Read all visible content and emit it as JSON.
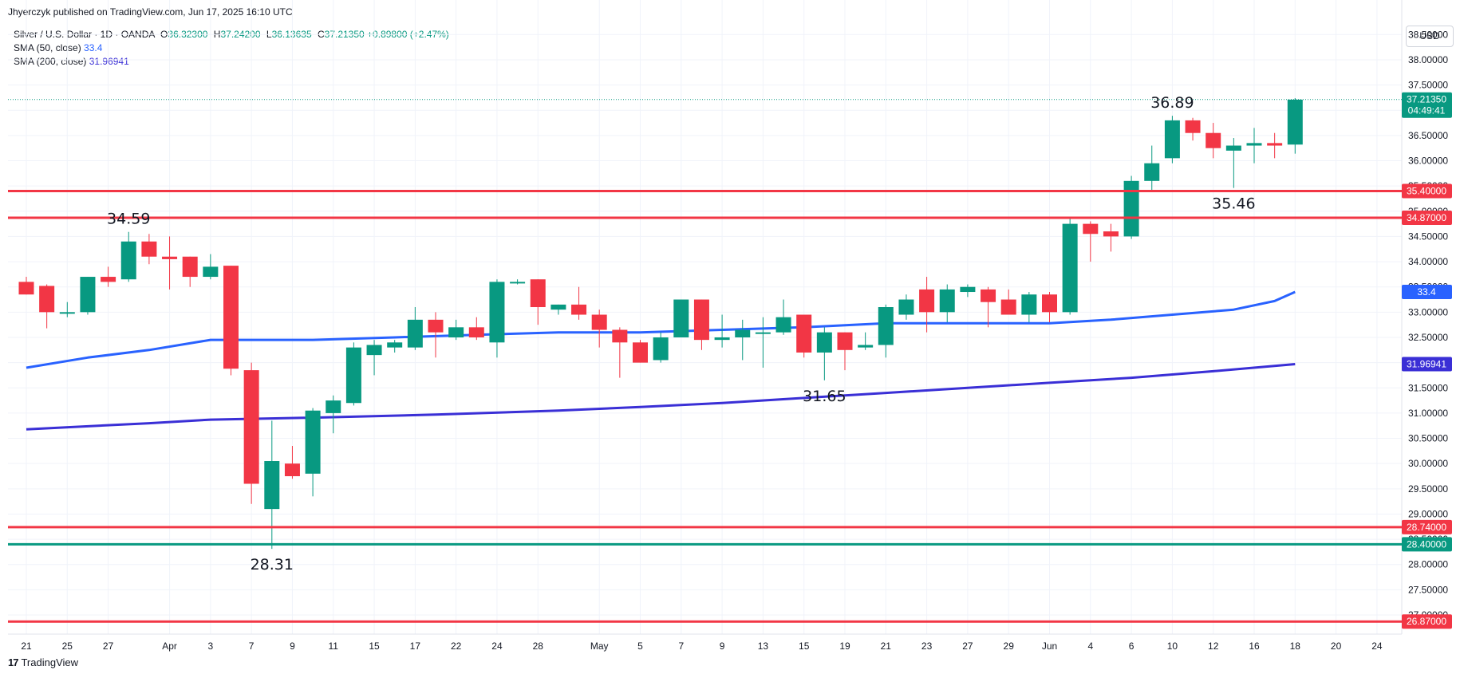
{
  "header": {
    "published": "Jhyerczyk published on TradingView.com, Jun 17, 2025 16:10 UTC",
    "symbol": "Silver / U.S. Dollar · 1D · OANDA",
    "ohlc": [
      {
        "k": "O",
        "v": "36.32300"
      },
      {
        "k": "H",
        "v": "37.24200"
      },
      {
        "k": "L",
        "v": "36.13635"
      },
      {
        "k": "C",
        "v": "37.21350"
      }
    ],
    "change": "+0.89800 (+2.47%)",
    "sma50_label": "SMA (50, close)",
    "sma50_value": "33.4",
    "sma200_label": "SMA (200, close)",
    "sma200_value": "31.96941"
  },
  "currency_button": "USD",
  "footer": {
    "logo_text": "TradingView",
    "logo_mark": "17"
  },
  "colors": {
    "up": "#089981",
    "down": "#f23645",
    "sma50": "#2962ff",
    "sma200": "#3a2fd6",
    "grid": "#f0f3fa"
  },
  "chart_data": {
    "type": "candlestick",
    "title": "Silver / U.S. Dollar · 1D · OANDA",
    "ylim": [
      26.7,
      38.9
    ],
    "y_ticks": [
      "27.00000",
      "27.50000",
      "28.00000",
      "28.50000",
      "29.00000",
      "29.50000",
      "30.00000",
      "30.50000",
      "31.00000",
      "31.50000",
      "32.00000",
      "32.50000",
      "33.00000",
      "33.50000",
      "34.00000",
      "34.50000",
      "35.00000",
      "35.50000",
      "36.00000",
      "36.50000",
      "37.00000",
      "37.50000",
      "38.00000",
      "38.50000"
    ],
    "x_ticks": [
      {
        "i": 0,
        "label": "21"
      },
      {
        "i": 2,
        "label": "25"
      },
      {
        "i": 4,
        "label": "27"
      },
      {
        "i": 7,
        "label": "Apr"
      },
      {
        "i": 9,
        "label": "3"
      },
      {
        "i": 11,
        "label": "7"
      },
      {
        "i": 13,
        "label": "9"
      },
      {
        "i": 15,
        "label": "11"
      },
      {
        "i": 17,
        "label": "15"
      },
      {
        "i": 19,
        "label": "17"
      },
      {
        "i": 21,
        "label": "22"
      },
      {
        "i": 23,
        "label": "24"
      },
      {
        "i": 25,
        "label": "28"
      },
      {
        "i": 28,
        "label": "May"
      },
      {
        "i": 30,
        "label": "5"
      },
      {
        "i": 32,
        "label": "7"
      },
      {
        "i": 34,
        "label": "9"
      },
      {
        "i": 36,
        "label": "13"
      },
      {
        "i": 38,
        "label": "15"
      },
      {
        "i": 40,
        "label": "19"
      },
      {
        "i": 42,
        "label": "21"
      },
      {
        "i": 44,
        "label": "23"
      },
      {
        "i": 46,
        "label": "27"
      },
      {
        "i": 48,
        "label": "29"
      },
      {
        "i": 50,
        "label": "Jun"
      },
      {
        "i": 52,
        "label": "4"
      },
      {
        "i": 54,
        "label": "6"
      },
      {
        "i": 56,
        "label": "10"
      },
      {
        "i": 58,
        "label": "12"
      },
      {
        "i": 60,
        "label": "16"
      },
      {
        "i": 62,
        "label": "18"
      },
      {
        "i": 64,
        "label": "20"
      },
      {
        "i": 66,
        "label": "24"
      }
    ],
    "candles": [
      {
        "o": 33.6,
        "h": 33.7,
        "l": 33.35,
        "c": 33.35
      },
      {
        "o": 33.52,
        "h": 33.55,
        "l": 32.68,
        "c": 33.0
      },
      {
        "o": 33.0,
        "h": 33.2,
        "l": 32.9,
        "c": 33.0
      },
      {
        "o": 33.0,
        "h": 33.7,
        "l": 32.95,
        "c": 33.7
      },
      {
        "o": 33.7,
        "h": 33.9,
        "l": 33.5,
        "c": 33.6
      },
      {
        "o": 33.65,
        "h": 34.59,
        "l": 33.6,
        "c": 34.4
      },
      {
        "o": 34.4,
        "h": 34.55,
        "l": 33.95,
        "c": 34.1
      },
      {
        "o": 34.1,
        "h": 34.5,
        "l": 33.45,
        "c": 34.05
      },
      {
        "o": 34.1,
        "h": 34.1,
        "l": 33.5,
        "c": 33.7
      },
      {
        "o": 33.7,
        "h": 34.15,
        "l": 33.65,
        "c": 33.9
      },
      {
        "o": 33.92,
        "h": 33.92,
        "l": 31.75,
        "c": 31.88
      },
      {
        "o": 31.85,
        "h": 32.0,
        "l": 29.2,
        "c": 29.6
      },
      {
        "o": 29.1,
        "h": 30.85,
        "l": 28.31,
        "c": 30.05
      },
      {
        "o": 30.0,
        "h": 30.35,
        "l": 29.7,
        "c": 29.75
      },
      {
        "o": 29.8,
        "h": 31.1,
        "l": 29.35,
        "c": 31.05
      },
      {
        "o": 31.0,
        "h": 31.35,
        "l": 30.6,
        "c": 31.25
      },
      {
        "o": 31.2,
        "h": 32.4,
        "l": 31.15,
        "c": 32.3
      },
      {
        "o": 32.15,
        "h": 32.45,
        "l": 31.75,
        "c": 32.35
      },
      {
        "o": 32.3,
        "h": 32.45,
        "l": 32.2,
        "c": 32.4
      },
      {
        "o": 32.3,
        "h": 33.1,
        "l": 32.25,
        "c": 32.85
      },
      {
        "o": 32.85,
        "h": 33.0,
        "l": 32.1,
        "c": 32.6
      },
      {
        "o": 32.5,
        "h": 32.85,
        "l": 32.45,
        "c": 32.7
      },
      {
        "o": 32.7,
        "h": 32.9,
        "l": 32.45,
        "c": 32.5
      },
      {
        "o": 32.4,
        "h": 33.65,
        "l": 32.1,
        "c": 33.6
      },
      {
        "o": 33.6,
        "h": 33.65,
        "l": 33.55,
        "c": 33.6
      },
      {
        "o": 33.65,
        "h": 33.65,
        "l": 32.75,
        "c": 33.1
      },
      {
        "o": 33.05,
        "h": 33.15,
        "l": 32.95,
        "c": 33.15
      },
      {
        "o": 33.15,
        "h": 33.5,
        "l": 32.85,
        "c": 32.95
      },
      {
        "o": 32.95,
        "h": 33.05,
        "l": 32.3,
        "c": 32.65
      },
      {
        "o": 32.65,
        "h": 32.7,
        "l": 31.7,
        "c": 32.4
      },
      {
        "o": 32.4,
        "h": 32.45,
        "l": 32.0,
        "c": 32.0
      },
      {
        "o": 32.05,
        "h": 32.6,
        "l": 32.0,
        "c": 32.5
      },
      {
        "o": 32.5,
        "h": 33.25,
        "l": 32.5,
        "c": 33.25
      },
      {
        "o": 33.25,
        "h": 33.25,
        "l": 32.25,
        "c": 32.45
      },
      {
        "o": 32.45,
        "h": 32.95,
        "l": 32.3,
        "c": 32.5
      },
      {
        "o": 32.5,
        "h": 32.85,
        "l": 32.05,
        "c": 32.65
      },
      {
        "o": 32.6,
        "h": 32.9,
        "l": 31.9,
        "c": 32.6
      },
      {
        "o": 32.6,
        "h": 33.25,
        "l": 32.55,
        "c": 32.9
      },
      {
        "o": 32.95,
        "h": 32.95,
        "l": 32.1,
        "c": 32.2
      },
      {
        "o": 32.2,
        "h": 32.7,
        "l": 31.65,
        "c": 32.6
      },
      {
        "o": 32.6,
        "h": 32.6,
        "l": 31.85,
        "c": 32.25
      },
      {
        "o": 32.3,
        "h": 32.6,
        "l": 32.25,
        "c": 32.35
      },
      {
        "o": 32.35,
        "h": 33.15,
        "l": 32.1,
        "c": 33.1
      },
      {
        "o": 32.95,
        "h": 33.35,
        "l": 32.85,
        "c": 33.25
      },
      {
        "o": 33.45,
        "h": 33.7,
        "l": 32.6,
        "c": 33.0
      },
      {
        "o": 33.0,
        "h": 33.55,
        "l": 32.8,
        "c": 33.45
      },
      {
        "o": 33.4,
        "h": 33.55,
        "l": 33.3,
        "c": 33.5
      },
      {
        "o": 33.45,
        "h": 33.5,
        "l": 32.7,
        "c": 33.2
      },
      {
        "o": 33.25,
        "h": 33.45,
        "l": 32.95,
        "c": 32.95
      },
      {
        "o": 32.95,
        "h": 33.4,
        "l": 32.8,
        "c": 33.35
      },
      {
        "o": 33.35,
        "h": 33.4,
        "l": 32.8,
        "c": 33.0
      },
      {
        "o": 33.0,
        "h": 34.85,
        "l": 32.95,
        "c": 34.75
      },
      {
        "o": 34.75,
        "h": 34.8,
        "l": 34.0,
        "c": 34.55
      },
      {
        "o": 34.6,
        "h": 34.75,
        "l": 34.2,
        "c": 34.5
      },
      {
        "o": 34.5,
        "h": 35.7,
        "l": 34.45,
        "c": 35.6
      },
      {
        "o": 35.6,
        "h": 36.3,
        "l": 35.4,
        "c": 35.95
      },
      {
        "o": 36.05,
        "h": 36.89,
        "l": 35.95,
        "c": 36.8
      },
      {
        "o": 36.8,
        "h": 36.85,
        "l": 36.4,
        "c": 36.55
      },
      {
        "o": 36.55,
        "h": 36.75,
        "l": 36.05,
        "c": 36.25
      },
      {
        "o": 36.2,
        "h": 36.45,
        "l": 35.46,
        "c": 36.3
      },
      {
        "o": 36.3,
        "h": 36.65,
        "l": 35.95,
        "c": 36.35
      },
      {
        "o": 36.35,
        "h": 36.55,
        "l": 36.05,
        "c": 36.3
      },
      {
        "o": 36.32,
        "h": 37.24,
        "l": 36.14,
        "c": 37.21
      }
    ],
    "last_index": 62,
    "series": [
      {
        "name": "SMA (50, close)",
        "color": "#2962ff",
        "points": [
          [
            0,
            31.9
          ],
          [
            3,
            32.1
          ],
          [
            6,
            32.25
          ],
          [
            9,
            32.45
          ],
          [
            11,
            32.45
          ],
          [
            14,
            32.45
          ],
          [
            18,
            32.5
          ],
          [
            22,
            32.55
          ],
          [
            26,
            32.6
          ],
          [
            30,
            32.6
          ],
          [
            34,
            32.65
          ],
          [
            38,
            32.7
          ],
          [
            42,
            32.78
          ],
          [
            46,
            32.78
          ],
          [
            50,
            32.78
          ],
          [
            53,
            32.85
          ],
          [
            56,
            32.95
          ],
          [
            59,
            33.05
          ],
          [
            61,
            33.22
          ],
          [
            62,
            33.4
          ]
        ]
      },
      {
        "name": "SMA (200, close)",
        "color": "#3a2fd6",
        "points": [
          [
            0,
            30.68
          ],
          [
            6,
            30.8
          ],
          [
            9,
            30.87
          ],
          [
            14,
            30.91
          ],
          [
            20,
            30.97
          ],
          [
            26,
            31.05
          ],
          [
            30,
            31.12
          ],
          [
            34,
            31.2
          ],
          [
            38,
            31.3
          ],
          [
            42,
            31.4
          ],
          [
            46,
            31.5
          ],
          [
            50,
            31.6
          ],
          [
            54,
            31.7
          ],
          [
            58,
            31.83
          ],
          [
            62,
            31.97
          ]
        ]
      }
    ],
    "hlines": [
      {
        "value": 35.4,
        "label": "35.40000",
        "color": "#f23645"
      },
      {
        "value": 34.87,
        "label": "34.87000",
        "color": "#f23645"
      },
      {
        "value": 28.74,
        "label": "28.74000",
        "color": "#f23645"
      },
      {
        "value": 28.4,
        "label": "28.40000",
        "color": "#089981"
      },
      {
        "value": 26.87,
        "label": "26.87000",
        "color": "#f23645"
      }
    ],
    "price_tags": [
      {
        "value": 37.2135,
        "label": "37.21350",
        "sub": "04:49:41",
        "color": "#089981"
      },
      {
        "value": 33.4,
        "label": "33.4",
        "color": "#2962ff"
      },
      {
        "value": 31.96941,
        "label": "31.96941",
        "color": "#3a2fd6"
      }
    ],
    "annotations": [
      {
        "i": 5,
        "value": 34.59,
        "text": "34.59",
        "pos": "above"
      },
      {
        "i": 12,
        "value": 28.31,
        "text": "28.31",
        "pos": "below"
      },
      {
        "i": 39,
        "value": 31.65,
        "text": "31.65",
        "pos": "below"
      },
      {
        "i": 56,
        "value": 36.89,
        "text": "36.89",
        "pos": "above"
      },
      {
        "i": 59,
        "value": 35.46,
        "text": "35.46",
        "pos": "below"
      }
    ]
  }
}
